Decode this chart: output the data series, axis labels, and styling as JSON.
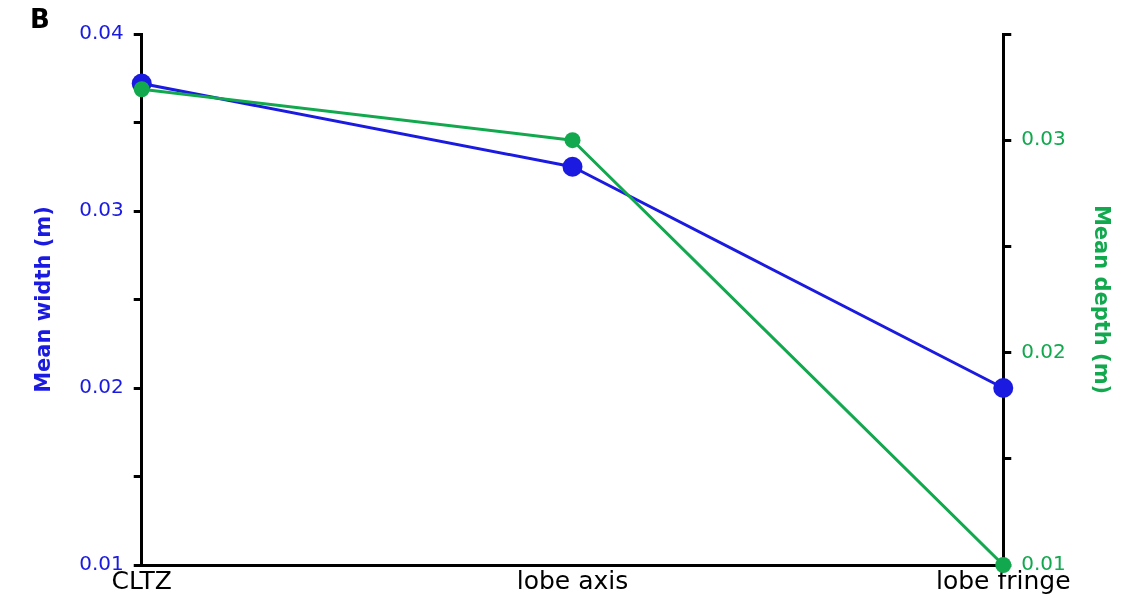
{
  "chart_data": {
    "type": "line",
    "title": "B",
    "categories": [
      "CLTZ",
      "lobe axis",
      "lobe fringe"
    ],
    "series": [
      {
        "color": "#1a1ae0",
        "values": [
          0.0372,
          0.0325,
          0.02
        ]
      },
      {
        "color": "#12a84e",
        "values": [
          0.0324,
          0.03,
          0.01
        ],
        "axis": "y2"
      }
    ],
    "ylabel": "Mean width (m)",
    "y2label": "Mean depth (m)",
    "ylim": [
      0.01,
      0.04
    ],
    "yticks": [
      0.01,
      {
        "value": 0.015,
        "label": null
      },
      0.02,
      {
        "value": 0.025,
        "label": null
      },
      0.03,
      {
        "value": 0.035,
        "label": null
      },
      0.04
    ],
    "y2lim": [
      0.01,
      0.035
    ],
    "y2ticks": [
      0.01,
      {
        "value": 0.015,
        "label": null
      },
      0.02,
      {
        "value": 0.025,
        "label": null
      },
      0.03,
      {
        "value": 0.035,
        "label": null
      }
    ],
    "grid": false,
    "legend": false,
    "marker": "circle",
    "line_style": "solid"
  }
}
